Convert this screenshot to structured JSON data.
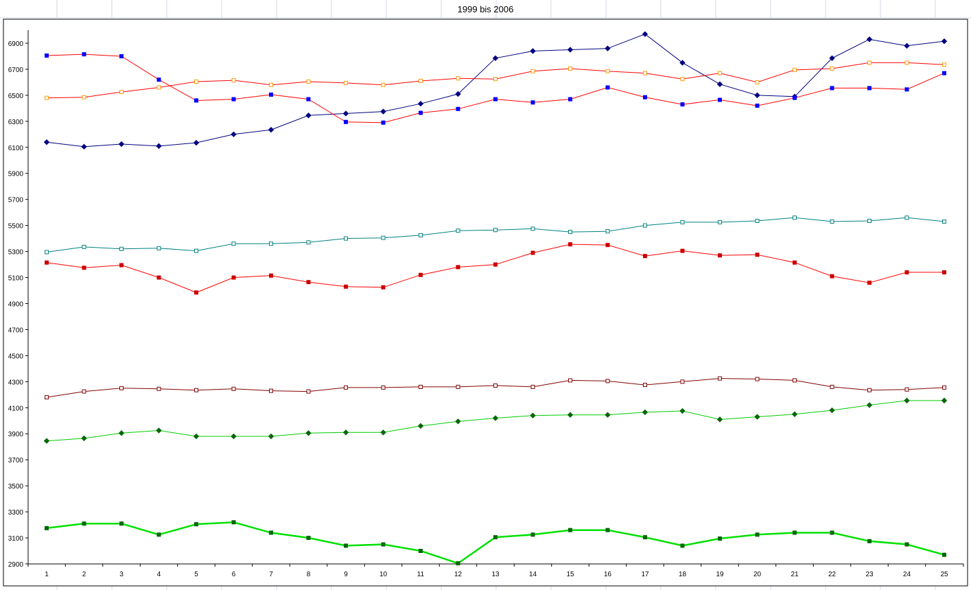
{
  "chart_data": {
    "type": "line",
    "title": "1999 bis 2006",
    "xlabel": "",
    "ylabel": "",
    "categories": [
      "1",
      "2",
      "3",
      "4",
      "5",
      "6",
      "7",
      "8",
      "9",
      "10",
      "11",
      "12",
      "13",
      "14",
      "15",
      "16",
      "17",
      "18",
      "19",
      "20",
      "21",
      "22",
      "23",
      "24",
      "25"
    ],
    "ylim": [
      2900,
      7000
    ],
    "yticks": [
      "2900",
      "3100",
      "3300",
      "3500",
      "3700",
      "3900",
      "4100",
      "4300",
      "4500",
      "4700",
      "4900",
      "5100",
      "5300",
      "5500",
      "5700",
      "5900",
      "6100",
      "6300",
      "6500",
      "6700",
      "6900"
    ],
    "grid": false,
    "legend": "none",
    "series": [
      {
        "color": "#000080",
        "marker": "diamond",
        "stroke_width": 1,
        "values": [
          6140,
          6105,
          6125,
          6110,
          6135,
          6200,
          6235,
          6345,
          6360,
          6375,
          6435,
          6510,
          6785,
          6840,
          6850,
          6860,
          6970,
          6750,
          6585,
          6500,
          6490,
          6785,
          6930,
          6880,
          6915
        ]
      },
      {
        "color": "#ff0000",
        "marker_color": "#0000ff",
        "marker": "square",
        "stroke_width": 1,
        "values": [
          6805,
          6815,
          6800,
          6620,
          6460,
          6470,
          6505,
          6470,
          6295,
          6290,
          6365,
          6395,
          6470,
          6445,
          6470,
          6560,
          6485,
          6430,
          6465,
          6420,
          6480,
          6555,
          6555,
          6545,
          6670
        ]
      },
      {
        "color": "#ff0000",
        "marker_color": "#ff9900",
        "marker": "square-open",
        "stroke_width": 1,
        "values": [
          6480,
          6485,
          6525,
          6560,
          6605,
          6615,
          6580,
          6605,
          6595,
          6580,
          6610,
          6630,
          6625,
          6685,
          6705,
          6685,
          6670,
          6625,
          6670,
          6600,
          6695,
          6705,
          6750,
          6750,
          6735
        ]
      },
      {
        "color": "#008080",
        "marker_color": "#008080",
        "marker": "square-open",
        "stroke_width": 1,
        "values": [
          5295,
          5335,
          5320,
          5325,
          5305,
          5360,
          5360,
          5370,
          5400,
          5405,
          5425,
          5460,
          5465,
          5475,
          5450,
          5455,
          5500,
          5525,
          5525,
          5535,
          5560,
          5530,
          5535,
          5560,
          5530
        ]
      },
      {
        "color": "#ff0000",
        "marker_color": "#cc0000",
        "marker": "square",
        "stroke_width": 1,
        "values": [
          5215,
          5175,
          5195,
          5100,
          4985,
          5100,
          5115,
          5065,
          5030,
          5025,
          5120,
          5180,
          5200,
          5290,
          5355,
          5350,
          5265,
          5305,
          5270,
          5275,
          5215,
          5110,
          5060,
          5140,
          5140
        ]
      },
      {
        "color": "#800000",
        "marker_color": "#800000",
        "marker": "square-open",
        "stroke_width": 1,
        "values": [
          4180,
          4225,
          4250,
          4245,
          4235,
          4245,
          4230,
          4225,
          4255,
          4255,
          4260,
          4260,
          4270,
          4260,
          4310,
          4305,
          4275,
          4300,
          4325,
          4320,
          4310,
          4260,
          4235,
          4240,
          4255
        ]
      },
      {
        "color": "#00cc00",
        "marker_color": "#006600",
        "marker": "diamond",
        "stroke_width": 1,
        "values": [
          3845,
          3865,
          3905,
          3925,
          3880,
          3880,
          3880,
          3905,
          3910,
          3910,
          3960,
          3995,
          4020,
          4040,
          4045,
          4045,
          4065,
          4075,
          4010,
          4030,
          4050,
          4080,
          4120,
          4155,
          4155
        ]
      },
      {
        "color": "#00e000",
        "marker_color": "#006600",
        "marker": "square",
        "stroke_width": 2.5,
        "values": [
          3175,
          3210,
          3210,
          3125,
          3205,
          3220,
          3140,
          3100,
          3040,
          3050,
          3000,
          2905,
          3105,
          3125,
          3160,
          3160,
          3105,
          3040,
          3095,
          3125,
          3140,
          3140,
          3075,
          3050,
          2970
        ]
      }
    ]
  }
}
